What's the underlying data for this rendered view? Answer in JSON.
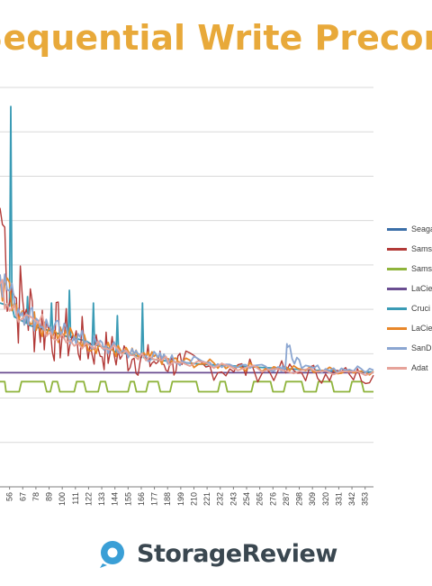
{
  "chart_data": {
    "type": "line",
    "title": "Sequential Write Precond",
    "xlabel": "",
    "ylabel": "",
    "grid": true,
    "legend_position": "right",
    "x_ticks": [
      "56",
      "67",
      "78",
      "89",
      "100",
      "111",
      "122",
      "133",
      "144",
      "155",
      "166",
      "177",
      "188",
      "199",
      "210",
      "221",
      "232",
      "243",
      "254",
      "265",
      "276",
      "287",
      "298",
      "309",
      "320",
      "331",
      "342",
      "353"
    ],
    "xlim": [
      48,
      360
    ],
    "series": [
      {
        "name": "Seaga",
        "color": "#3b6fa8",
        "x": [],
        "y": []
      },
      {
        "name": "Sams",
        "color": "#b23a38",
        "x": [
          48,
          60,
          70,
          80,
          90,
          100,
          110,
          120,
          130,
          140,
          150,
          160,
          170,
          180,
          190,
          200,
          220,
          240,
          260,
          280,
          300,
          320,
          340,
          360
        ],
        "y": [
          440,
          300,
          280,
          262,
          250,
          240,
          232,
          225,
          218,
          212,
          207,
          203,
          200,
          197,
          195,
          193,
          189,
          186,
          184,
          182,
          180,
          178,
          177,
          176
        ]
      },
      {
        "name": "Sams",
        "color": "#8fb43c",
        "x": [
          48,
          52,
          53,
          64,
          66,
          85,
          87,
          90,
          92,
          96,
          98,
          110,
          112,
          118,
          120,
          130,
          132,
          136,
          138,
          155,
          157,
          160,
          162,
          170,
          172,
          180,
          182,
          190,
          192,
          212,
          214,
          230,
          232,
          236,
          238,
          258,
          260,
          274,
          276,
          285,
          287,
          300,
          302,
          312,
          314,
          325,
          327,
          340,
          342,
          350,
          352,
          360
        ],
        "y": [
          166,
          166,
          150,
          150,
          166,
          166,
          150,
          150,
          166,
          166,
          150,
          150,
          166,
          166,
          150,
          150,
          166,
          166,
          150,
          150,
          166,
          166,
          150,
          150,
          166,
          166,
          150,
          150,
          166,
          166,
          150,
          150,
          166,
          166,
          150,
          150,
          166,
          166,
          150,
          150,
          166,
          166,
          150,
          150,
          166,
          166,
          150,
          150,
          166,
          166,
          150,
          150
        ]
      },
      {
        "name": "LaCie",
        "color": "#6a4d91",
        "x": [
          48,
          80,
          120,
          160,
          200,
          240,
          280,
          320,
          360
        ],
        "y": [
          180,
          180,
          180,
          180,
          180,
          180,
          180,
          180,
          180
        ]
      },
      {
        "name": "Cruci",
        "color": "#3a9bb5",
        "x": [
          48,
          56,
          57,
          58,
          60,
          70,
          71,
          72,
          90,
          91,
          92,
          100,
          105,
          106,
          107,
          120,
          125,
          126,
          127,
          140,
          145,
          146,
          147,
          160,
          166,
          167,
          168,
          180,
          200,
          220,
          240,
          260,
          280,
          300,
          320,
          340,
          360
        ],
        "y": [
          290,
          285,
          600,
          285,
          268,
          258,
          300,
          255,
          246,
          290,
          244,
          240,
          236,
          310,
          236,
          230,
          224,
          290,
          224,
          218,
          212,
          270,
          212,
          208,
          204,
          290,
          204,
          200,
          196,
          193,
          191,
          189,
          187,
          185,
          183,
          182,
          181
        ]
      },
      {
        "name": "LaCie",
        "color": "#e8872a",
        "x": [
          48,
          60,
          70,
          80,
          90,
          100,
          110,
          120,
          130,
          140,
          150,
          160,
          170,
          180,
          190,
          200,
          220,
          240,
          260,
          280,
          300,
          320,
          340,
          360
        ],
        "y": [
          330,
          290,
          272,
          260,
          250,
          242,
          235,
          228,
          222,
          217,
          212,
          208,
          205,
          202,
          199,
          197,
          194,
          191,
          189,
          187,
          185,
          184,
          183,
          182
        ]
      },
      {
        "name": "SanD",
        "color": "#8ba6d1",
        "x": [
          48,
          60,
          70,
          80,
          90,
          100,
          110,
          120,
          130,
          140,
          150,
          160,
          170,
          180,
          190,
          200,
          220,
          240,
          260,
          280,
          286,
          288,
          300,
          320,
          340,
          360
        ],
        "y": [
          335,
          292,
          274,
          262,
          252,
          244,
          237,
          230,
          224,
          219,
          214,
          210,
          207,
          204,
          201,
          199,
          196,
          193,
          191,
          189,
          189,
          220,
          187,
          186,
          185,
          184
        ]
      },
      {
        "name": "Adat",
        "color": "#e6a39a",
        "x": [
          48,
          60,
          80,
          100,
          120,
          140,
          160,
          180,
          200,
          240,
          280,
          320,
          360
        ],
        "y": [
          320,
          286,
          258,
          241,
          227,
          216,
          207,
          201,
          196,
          190,
          186,
          183,
          181
        ]
      }
    ]
  },
  "brand": {
    "name": "StorageReview"
  },
  "colors": {
    "title": "#e8a93a",
    "grid": "#d9d9d9",
    "axis": "#7f7f7f",
    "brand_logo": "#3a9fd6"
  }
}
